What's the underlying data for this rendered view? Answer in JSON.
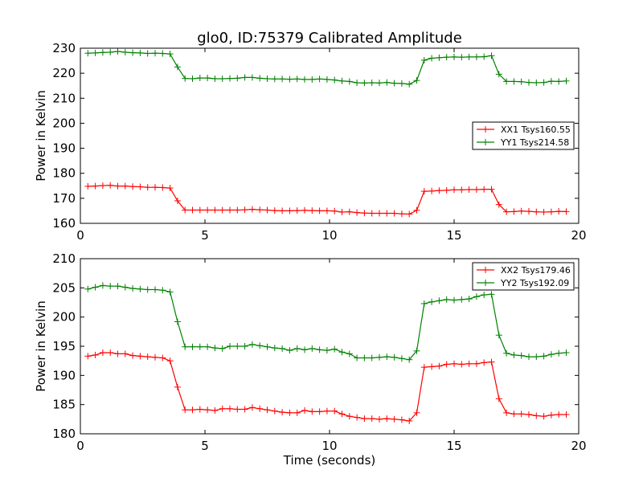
{
  "chart_data": [
    {
      "type": "line",
      "title": "glo0, ID:75379 Calibrated Amplitude",
      "xlabel": "",
      "ylabel": "Power in Kelvin",
      "xlim": [
        0,
        20
      ],
      "ylim": [
        160,
        230
      ],
      "x_ticks": [
        0,
        5,
        10,
        15,
        20
      ],
      "y_ticks": [
        160,
        170,
        180,
        190,
        200,
        210,
        220,
        230
      ],
      "x_tick_labels": [
        "0",
        "5",
        "10",
        "15",
        "20"
      ],
      "y_tick_labels": [
        "160",
        "170",
        "180",
        "190",
        "200",
        "210",
        "220",
        "230"
      ],
      "grid": false,
      "legend_position": "center-right",
      "x": [
        0.3,
        0.6,
        0.9,
        1.2,
        1.5,
        1.8,
        2.1,
        2.4,
        2.7,
        3.0,
        3.3,
        3.6,
        3.9,
        4.2,
        4.5,
        4.8,
        5.1,
        5.4,
        5.7,
        6.0,
        6.3,
        6.6,
        6.9,
        7.2,
        7.5,
        7.8,
        8.1,
        8.4,
        8.7,
        9.0,
        9.3,
        9.6,
        9.9,
        10.2,
        10.5,
        10.8,
        11.1,
        11.4,
        11.7,
        12.0,
        12.3,
        12.6,
        12.9,
        13.2,
        13.5,
        13.8,
        14.1,
        14.4,
        14.7,
        15.0,
        15.3,
        15.6,
        15.9,
        16.2,
        16.5,
        16.8,
        17.1,
        17.4,
        17.7,
        18.0,
        18.3,
        18.6,
        18.9,
        19.2,
        19.5
      ],
      "series": [
        {
          "name": "XX1 Tsys160.55",
          "color": "#ff0000",
          "values": [
            174.8,
            174.9,
            175.1,
            175.2,
            174.9,
            174.9,
            174.7,
            174.6,
            174.4,
            174.4,
            174.3,
            174.1,
            169.0,
            165.3,
            165.3,
            165.3,
            165.3,
            165.3,
            165.3,
            165.3,
            165.3,
            165.4,
            165.6,
            165.4,
            165.3,
            165.1,
            165.0,
            165.0,
            165.1,
            165.2,
            165.1,
            165.0,
            165.0,
            164.9,
            164.5,
            164.6,
            164.3,
            164.1,
            164.0,
            164.0,
            164.0,
            164.0,
            163.8,
            163.7,
            165.2,
            172.8,
            172.9,
            173.1,
            173.2,
            173.4,
            173.4,
            173.5,
            173.5,
            173.6,
            173.6,
            167.5,
            164.6,
            164.7,
            164.9,
            164.8,
            164.6,
            164.5,
            164.6,
            164.8,
            164.7
          ]
        },
        {
          "name": "YY1 Tsys214.58",
          "color": "#008000",
          "values": [
            228.0,
            228.1,
            228.3,
            228.4,
            228.7,
            228.4,
            228.2,
            228.1,
            227.9,
            228.0,
            227.9,
            227.7,
            222.5,
            217.9,
            217.8,
            218.1,
            218.1,
            217.8,
            217.8,
            217.9,
            218.0,
            218.3,
            218.3,
            218.0,
            217.8,
            217.7,
            217.7,
            217.6,
            217.7,
            217.5,
            217.5,
            217.7,
            217.5,
            217.3,
            216.9,
            216.7,
            216.2,
            216.1,
            216.2,
            216.1,
            216.3,
            216.0,
            215.9,
            215.6,
            217.1,
            225.2,
            226.0,
            226.2,
            226.4,
            226.5,
            226.4,
            226.5,
            226.5,
            226.6,
            227.0,
            219.6,
            216.7,
            216.7,
            216.6,
            216.3,
            216.2,
            216.3,
            216.8,
            216.7,
            216.9
          ]
        }
      ]
    },
    {
      "type": "line",
      "title": "",
      "xlabel": "Time (seconds)",
      "ylabel": "Power in Kelvin",
      "xlim": [
        0,
        20
      ],
      "ylim": [
        180,
        210
      ],
      "x_ticks": [
        0,
        5,
        10,
        15,
        20
      ],
      "y_ticks": [
        180,
        185,
        190,
        195,
        200,
        205,
        210
      ],
      "x_tick_labels": [
        "0",
        "5",
        "10",
        "15",
        "20"
      ],
      "y_tick_labels": [
        "180",
        "185",
        "190",
        "195",
        "200",
        "205",
        "210"
      ],
      "grid": false,
      "legend_position": "top-right",
      "x": [
        0.3,
        0.6,
        0.9,
        1.2,
        1.5,
        1.8,
        2.1,
        2.4,
        2.7,
        3.0,
        3.3,
        3.6,
        3.9,
        4.2,
        4.5,
        4.8,
        5.1,
        5.4,
        5.7,
        6.0,
        6.3,
        6.6,
        6.9,
        7.2,
        7.5,
        7.8,
        8.1,
        8.4,
        8.7,
        9.0,
        9.3,
        9.6,
        9.9,
        10.2,
        10.5,
        10.8,
        11.1,
        11.4,
        11.7,
        12.0,
        12.3,
        12.6,
        12.9,
        13.2,
        13.5,
        13.8,
        14.1,
        14.4,
        14.7,
        15.0,
        15.3,
        15.6,
        15.9,
        16.2,
        16.5,
        16.8,
        17.1,
        17.4,
        17.7,
        18.0,
        18.3,
        18.6,
        18.9,
        19.2,
        19.5
      ],
      "series": [
        {
          "name": "XX2 Tsys179.46",
          "color": "#ff0000",
          "values": [
            193.3,
            193.5,
            193.9,
            193.9,
            193.7,
            193.7,
            193.4,
            193.3,
            193.2,
            193.1,
            193.0,
            192.5,
            188.0,
            184.1,
            184.1,
            184.2,
            184.1,
            184.0,
            184.3,
            184.3,
            184.2,
            184.2,
            184.5,
            184.3,
            184.1,
            183.9,
            183.7,
            183.6,
            183.6,
            184.0,
            183.8,
            183.8,
            183.9,
            183.9,
            183.4,
            183.0,
            182.8,
            182.6,
            182.6,
            182.5,
            182.6,
            182.5,
            182.4,
            182.2,
            183.6,
            191.4,
            191.5,
            191.6,
            191.9,
            192.0,
            191.9,
            192.0,
            192.0,
            192.2,
            192.3,
            186.0,
            183.6,
            183.4,
            183.4,
            183.3,
            183.1,
            183.0,
            183.2,
            183.3,
            183.3
          ]
        },
        {
          "name": "YY2 Tsys192.09",
          "color": "#008000",
          "values": [
            204.8,
            205.1,
            205.4,
            205.3,
            205.3,
            205.1,
            204.9,
            204.8,
            204.7,
            204.7,
            204.6,
            204.3,
            199.2,
            194.9,
            194.9,
            194.9,
            194.9,
            194.7,
            194.6,
            195.0,
            195.0,
            195.0,
            195.3,
            195.1,
            194.9,
            194.7,
            194.6,
            194.3,
            194.6,
            194.4,
            194.6,
            194.4,
            194.3,
            194.5,
            194.0,
            193.7,
            193.0,
            193.0,
            193.0,
            193.1,
            193.2,
            193.1,
            192.9,
            192.7,
            194.2,
            202.3,
            202.6,
            202.8,
            203.0,
            202.9,
            203.0,
            203.1,
            203.5,
            203.8,
            203.9,
            196.9,
            193.8,
            193.5,
            193.4,
            193.2,
            193.2,
            193.3,
            193.6,
            193.8,
            193.9
          ]
        }
      ]
    }
  ]
}
